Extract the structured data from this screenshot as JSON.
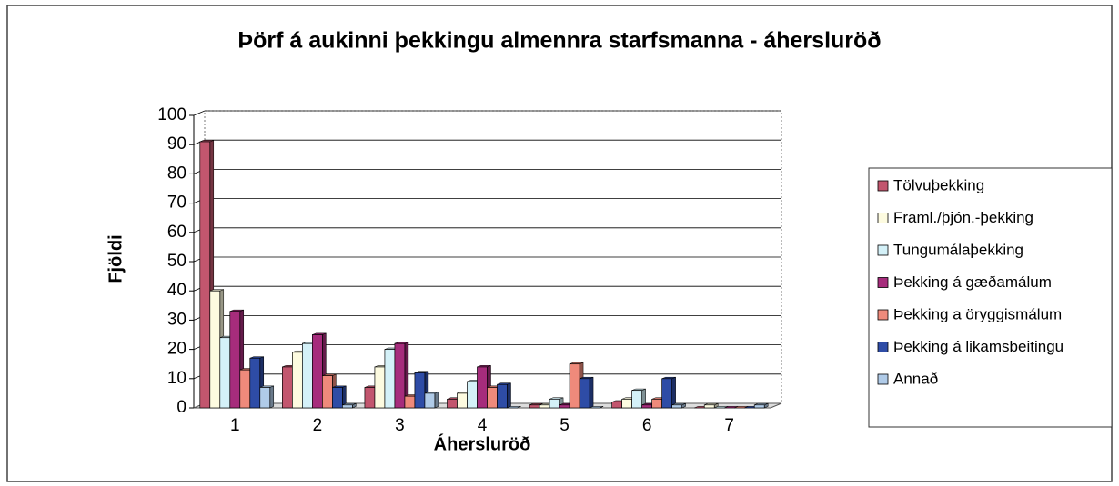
{
  "chart_data": {
    "type": "bar",
    "title": "Þörf á aukinni þekkingu almennra starfsmanna - áhersluröð",
    "x_label": "Áhersluröð",
    "y_label": "Fjöldi",
    "categories": [
      "1",
      "2",
      "3",
      "4",
      "5",
      "6",
      "7"
    ],
    "series": [
      {
        "name": "Tölvuþekking",
        "color": "#c2566e",
        "values": [
          91,
          14,
          7,
          3,
          1,
          2,
          0
        ]
      },
      {
        "name": "Framl./þjón.-þekking",
        "color": "#fdfbe0",
        "values": [
          40,
          19,
          14,
          5,
          1,
          3,
          1
        ]
      },
      {
        "name": "Tungumálaþekking",
        "color": "#d4f1f8",
        "values": [
          24,
          22,
          20,
          9,
          3,
          6,
          0
        ]
      },
      {
        "name": "Þekking á gæðamálum",
        "color": "#a62c7c",
        "values": [
          33,
          25,
          22,
          14,
          1,
          1,
          0
        ]
      },
      {
        "name": "Þekking a öryggismálum",
        "color": "#ef8a7b",
        "values": [
          13,
          11,
          4,
          7,
          15,
          3,
          0
        ]
      },
      {
        "name": "Þekking á likamsbeitingu",
        "color": "#2e4ca6",
        "values": [
          17,
          7,
          12,
          8,
          10,
          10,
          0
        ]
      },
      {
        "name": "Annað",
        "color": "#b0cbe8",
        "values": [
          7,
          1,
          5,
          0,
          0,
          1,
          1
        ]
      }
    ],
    "ylim": [
      0,
      100
    ],
    "yticks": [
      0,
      10,
      20,
      30,
      40,
      50,
      60,
      70,
      80,
      90,
      100
    ],
    "grid": true,
    "legend": "right"
  }
}
